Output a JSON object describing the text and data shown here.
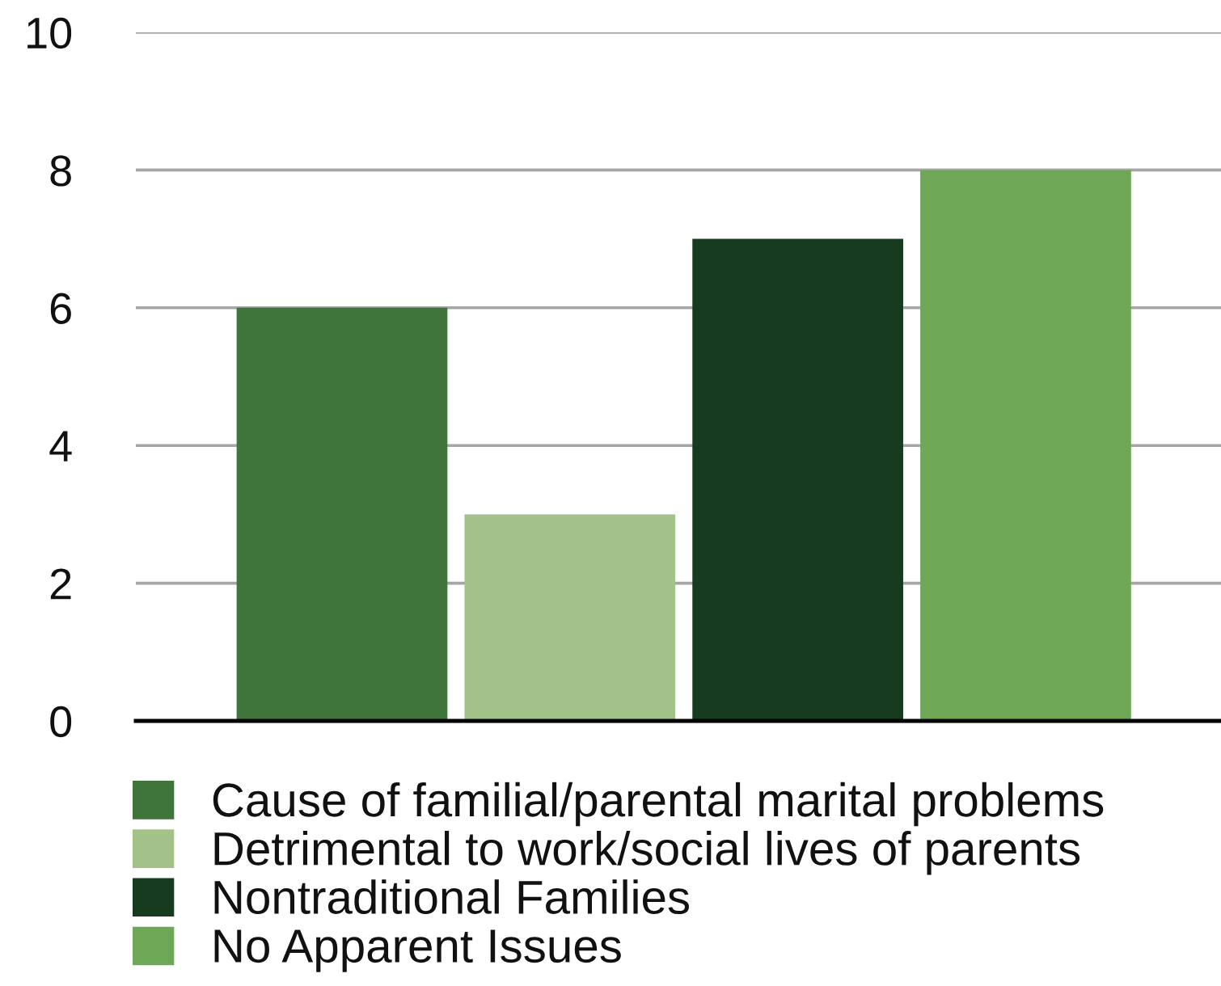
{
  "chart_data": {
    "type": "bar",
    "categories": [
      null
    ],
    "series": [
      {
        "name": "Cause of familial/parental marital problems",
        "color": "#3f743a",
        "values": [
          6
        ]
      },
      {
        "name": "Detrimental to work/social lives of parents",
        "color": "#a3c28a",
        "values": [
          3
        ]
      },
      {
        "name": "Nontraditional Families",
        "color": "#163b1e",
        "values": [
          7
        ]
      },
      {
        "name": "No Apparent Issues",
        "color": "#6ea856",
        "values": [
          8
        ]
      }
    ],
    "ylim": [
      0,
      10
    ],
    "yticks": [
      0,
      2,
      4,
      6,
      8,
      10
    ],
    "grid": "y",
    "legend": "bottom",
    "tick_labels": "y"
  }
}
